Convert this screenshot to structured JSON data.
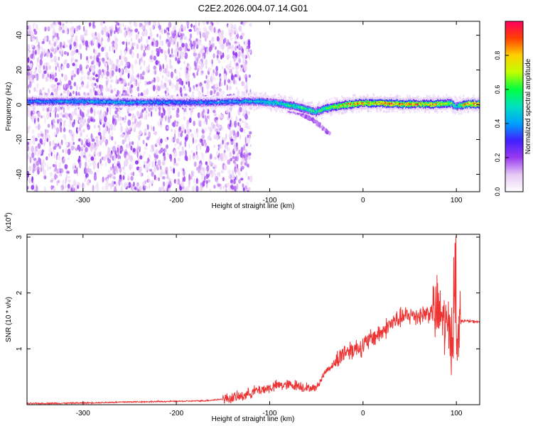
{
  "title": "C2E2.2026.004.07.14.G01",
  "chart_data": [
    {
      "type": "heatmap",
      "xlabel": "Height of straight line (km)",
      "ylabel": "Frequency (Hz)",
      "xlim": [
        -360,
        125
      ],
      "ylim": [
        -50,
        48
      ],
      "xticks": [
        -300,
        -200,
        -100,
        0,
        100
      ],
      "yticks": [
        -40,
        -20,
        0,
        20,
        40
      ],
      "grid": false,
      "colorbar": {
        "label": "Normalized spectral amplitude",
        "range": [
          0,
          1
        ],
        "ticks": [
          0.0,
          0.2,
          0.4,
          0.6,
          0.8
        ],
        "colormap": [
          "#ffffff",
          "#e6c8f5",
          "#9a3bf0",
          "#4020ff",
          "#00a0ff",
          "#00e0c0",
          "#00ff40",
          "#c0ff00",
          "#ffd000",
          "#ff4000",
          "#ff0060"
        ]
      },
      "ridge": {
        "x": [
          -350,
          -300,
          -250,
          -200,
          -160,
          -130,
          -110,
          -90,
          -70,
          -50,
          -40,
          -20,
          0,
          20,
          40,
          60,
          80,
          95,
          100,
          110,
          125
        ],
        "freq": [
          2,
          2,
          1.5,
          1.5,
          1.5,
          2,
          2,
          1,
          -1,
          -4,
          -2,
          0,
          1,
          1,
          0.5,
          0.5,
          0.5,
          1,
          -1,
          0.5,
          0.5
        ],
        "amplitude": [
          0.4,
          0.45,
          0.45,
          0.4,
          0.4,
          0.45,
          0.5,
          0.55,
          0.6,
          0.6,
          0.65,
          0.85,
          0.9,
          0.85,
          0.9,
          0.85,
          0.85,
          0.7,
          0.5,
          0.9,
          0.9
        ]
      },
      "noise_extent": [
        -360,
        -120
      ]
    },
    {
      "type": "line",
      "xlabel": "Height of straight line (km)",
      "ylabel": "SNR (10 * v/v)",
      "y_multiplier": "(x10",
      "y_multiplier_exp": "4",
      "y_multiplier_close": ")",
      "xlim": [
        -360,
        125
      ],
      "ylim": [
        0,
        3.05
      ],
      "xticks": [
        -300,
        -200,
        -100,
        0,
        100
      ],
      "yticks": [
        1,
        2,
        3
      ],
      "grid": false,
      "color": "#ee3333",
      "series": [
        {
          "x": [
            -360,
            -300,
            -250,
            -200,
            -170,
            -150,
            -130,
            -115,
            -100,
            -90,
            -80,
            -70,
            -60,
            -50,
            -45,
            -40,
            -30,
            -20,
            -10,
            0,
            10,
            20,
            30,
            40,
            50,
            60,
            70,
            80,
            85,
            90,
            95,
            100,
            105,
            110,
            125
          ],
          "values": [
            0.02,
            0.03,
            0.05,
            0.06,
            0.07,
            0.1,
            0.15,
            0.25,
            0.3,
            0.35,
            0.35,
            0.35,
            0.3,
            0.3,
            0.45,
            0.6,
            0.75,
            0.95,
            1.0,
            1.05,
            1.2,
            1.3,
            1.45,
            1.55,
            1.6,
            1.6,
            1.65,
            1.65,
            1.55,
            1.35,
            1.25,
            1.35,
            1.5,
            1.5,
            1.48
          ]
        }
      ]
    }
  ]
}
